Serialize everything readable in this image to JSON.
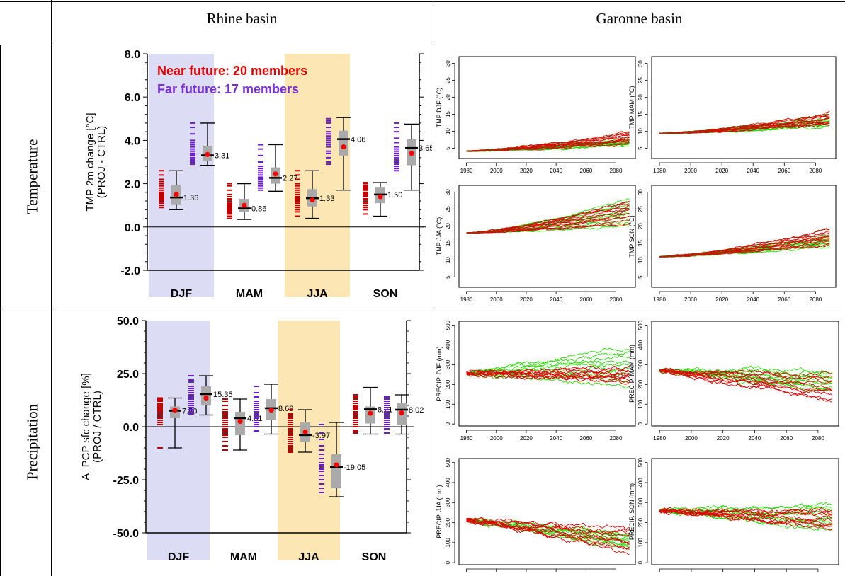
{
  "headers": {
    "rhine": "Rhine basin",
    "garonne": "Garonne basin"
  },
  "rows": {
    "temperature": "Temperature",
    "precipitation": "Precipitation"
  },
  "chart_data": [
    {
      "id": "rhine_temp",
      "type": "boxplot",
      "ylabel_1": "TMP 2m change [°C]",
      "ylabel_2": "(PROJ - CTRL)",
      "ylim": [
        -2.0,
        8.0
      ],
      "yticks": [
        "8.0",
        "6.0",
        "4.0",
        "2.0",
        "0.0",
        "-2.0"
      ],
      "ytick_values": [
        8,
        6,
        4,
        2,
        0,
        -2
      ],
      "categories": [
        "DJF",
        "MAM",
        "JJA",
        "SON"
      ],
      "highlight_colors": {
        "DJF": "#dcdcf4",
        "JJA": "#fbe6b4"
      },
      "legend": [
        {
          "text": "Near future: 20 members",
          "color": "#e00000"
        },
        {
          "text": "Far future:   17 members",
          "color": "#7a2ed6"
        }
      ],
      "series": [
        {
          "name": "Near future",
          "color": "#c00000",
          "boxes": [
            {
              "season": "DJF",
              "min": 0.8,
              "q1": 1.05,
              "median": 1.36,
              "q3": 1.95,
              "max": 2.6,
              "mean": 1.5,
              "label": "1.36",
              "members": [
                0.9,
                1.0,
                1.1,
                1.2,
                1.3,
                1.35,
                1.4,
                1.45,
                1.5,
                1.55,
                1.6,
                1.7,
                1.8,
                1.9,
                2.0,
                2.1,
                2.2,
                2.4,
                2.6,
                1.25
              ]
            },
            {
              "season": "MAM",
              "min": 0.35,
              "q1": 0.7,
              "median": 0.86,
              "q3": 1.3,
              "max": 2.0,
              "mean": 1.0,
              "label": "0.86",
              "members": [
                0.4,
                0.5,
                0.6,
                0.7,
                0.75,
                0.8,
                0.85,
                0.9,
                0.95,
                1.0,
                1.05,
                1.1,
                1.2,
                1.3,
                1.4,
                1.5,
                1.7,
                1.9,
                2.0,
                0.65
              ]
            },
            {
              "season": "JJA",
              "min": 0.4,
              "q1": 0.95,
              "median": 1.33,
              "q3": 1.75,
              "max": 2.6,
              "mean": 1.25,
              "label": "1.33",
              "members": [
                0.5,
                0.7,
                0.9,
                1.0,
                1.1,
                1.2,
                1.25,
                1.3,
                1.35,
                1.4,
                1.5,
                1.6,
                1.7,
                1.8,
                1.9,
                2.0,
                2.2,
                2.4,
                2.6,
                0.8
              ]
            },
            {
              "season": "SON",
              "min": 0.5,
              "q1": 1.1,
              "median": 1.5,
              "q3": 1.85,
              "max": 2.05,
              "mean": 1.4,
              "label": "1.50",
              "members": [
                0.6,
                0.8,
                0.9,
                1.0,
                1.1,
                1.2,
                1.3,
                1.4,
                1.45,
                1.5,
                1.55,
                1.6,
                1.7,
                1.75,
                1.8,
                1.85,
                1.9,
                2.0,
                2.05,
                1.0
              ]
            }
          ]
        },
        {
          "name": "Far future",
          "color": "#6a1fc8",
          "boxes": [
            {
              "season": "DJF",
              "min": 2.85,
              "q1": 3.05,
              "median": 3.31,
              "q3": 3.75,
              "max": 4.8,
              "mean": 3.35,
              "label": "3.31",
              "members": [
                2.9,
                3.0,
                3.05,
                3.1,
                3.2,
                3.3,
                3.35,
                3.4,
                3.5,
                3.6,
                3.7,
                3.8,
                3.9,
                4.0,
                4.3,
                4.6,
                4.8
              ]
            },
            {
              "season": "MAM",
              "min": 1.65,
              "q1": 2.0,
              "median": 2.27,
              "q3": 2.75,
              "max": 3.8,
              "mean": 2.45,
              "label": "2.27",
              "members": [
                1.7,
                1.8,
                1.9,
                2.0,
                2.1,
                2.2,
                2.25,
                2.3,
                2.4,
                2.5,
                2.6,
                2.7,
                2.8,
                3.0,
                3.3,
                3.6,
                3.8
              ]
            },
            {
              "season": "JJA",
              "min": 1.7,
              "q1": 3.3,
              "median": 4.06,
              "q3": 4.45,
              "max": 5.05,
              "mean": 3.7,
              "label": "4.06",
              "members": [
                2.9,
                3.0,
                3.2,
                3.4,
                3.5,
                3.7,
                3.8,
                3.9,
                4.0,
                4.1,
                4.2,
                4.3,
                4.4,
                4.6,
                4.8,
                4.9,
                5.0
              ]
            },
            {
              "season": "SON",
              "min": 1.7,
              "q1": 2.85,
              "median": 3.65,
              "q3": 4.05,
              "max": 4.75,
              "mean": 3.4,
              "label": "3.65",
              "members": [
                2.6,
                2.7,
                2.8,
                2.9,
                3.0,
                3.1,
                3.2,
                3.3,
                3.4,
                3.5,
                3.6,
                3.7,
                3.9,
                4.1,
                4.4,
                4.6,
                4.8
              ]
            }
          ]
        }
      ]
    },
    {
      "id": "rhine_precip",
      "type": "boxplot",
      "ylabel_1": "A_PCP sfc change [%]",
      "ylabel_2": "(PROJ / CTRL)",
      "ylim": [
        -50.0,
        50.0
      ],
      "yticks": [
        "50.0",
        "25.0",
        "0.0",
        "-25.0",
        "-50.0"
      ],
      "ytick_values": [
        50,
        25,
        0,
        -25,
        -50
      ],
      "categories": [
        "DJF",
        "MAM",
        "JJA",
        "SON"
      ],
      "highlight_colors": {
        "DJF": "#dcdcf4",
        "JJA": "#fbe6b4"
      },
      "series": [
        {
          "name": "Near future",
          "color": "#c00000",
          "boxes": [
            {
              "season": "DJF",
              "min": -10.0,
              "q1": 4.0,
              "median": 7.5,
              "q3": 9.5,
              "max": 13.5,
              "mean": 7.8,
              "label": "7.50",
              "members": [
                -10,
                1,
                2,
                3,
                4,
                5,
                6,
                7,
                7.5,
                8,
                8.5,
                9,
                9.5,
                10,
                10.5,
                11,
                12,
                12.5,
                13,
                13.5
              ]
            },
            {
              "season": "MAM",
              "min": -11.0,
              "q1": -4.0,
              "median": 4.01,
              "q3": 7.0,
              "max": 13.0,
              "mean": 2.5,
              "label": "4.01",
              "members": [
                -11,
                -9,
                -7,
                -5,
                -4,
                -3,
                -2,
                -1,
                0,
                1,
                2,
                3,
                4,
                5,
                6,
                7,
                8,
                10,
                12,
                13
              ]
            },
            {
              "season": "JJA",
              "min": -12.0,
              "q1": -7.0,
              "median": -3.97,
              "q3": 2.0,
              "max": 8.0,
              "mean": -2.5,
              "label": "-3.97",
              "members": [
                -12,
                -11,
                -10,
                -9,
                -8,
                -7,
                -6,
                -5,
                -4,
                -3,
                -2,
                -1,
                0,
                1,
                2,
                3,
                4,
                5,
                6,
                8
              ]
            },
            {
              "season": "SON",
              "min": -3.5,
              "q1": 1.5,
              "median": 8.21,
              "q3": 9.5,
              "max": 18.5,
              "mean": 6.3,
              "label": "8.21",
              "members": [
                -3,
                -2,
                0,
                1,
                2,
                3,
                4,
                5,
                6,
                7,
                8,
                8.5,
                9,
                9.5,
                10,
                11,
                12,
                13,
                14,
                15
              ]
            }
          ]
        },
        {
          "name": "Far future",
          "color": "#6a1fc8",
          "boxes": [
            {
              "season": "DJF",
              "min": 5.5,
              "q1": 10.0,
              "median": 15.35,
              "q3": 19.0,
              "max": 24.0,
              "mean": 13.5,
              "label": "15.35",
              "members": [
                6,
                7,
                8,
                9,
                10,
                11,
                12,
                13,
                14,
                15,
                16,
                17,
                18,
                19,
                21,
                22,
                24
              ]
            },
            {
              "season": "MAM",
              "min": -3.5,
              "q1": 3.0,
              "median": 8.69,
              "q3": 13.0,
              "max": 20.0,
              "mean": 7.8,
              "label": "8.69",
              "members": [
                -2,
                0,
                1,
                2,
                3,
                4,
                5,
                6,
                7,
                8,
                9,
                10,
                11,
                12,
                14,
                16,
                19
              ]
            },
            {
              "season": "JJA",
              "min": -33.0,
              "q1": -29.0,
              "median": -19.05,
              "q3": -13.0,
              "max": 2.0,
              "mean": -18.0,
              "label": "-19.05",
              "members": [
                -31,
                -29,
                -27,
                -25,
                -23,
                -21,
                -20,
                -19,
                -18,
                -17,
                -15,
                -13,
                -11,
                -9,
                -6,
                -3,
                1
              ]
            },
            {
              "season": "SON",
              "min": -3.5,
              "q1": 1.0,
              "median": 8.02,
              "q3": 11.0,
              "max": 15.0,
              "mean": 6.5,
              "label": "8.02",
              "members": [
                -3,
                -1,
                0,
                1,
                2,
                3,
                4,
                5,
                6,
                7,
                8,
                9,
                10,
                11,
                12,
                13,
                14
              ]
            }
          ]
        }
      ]
    },
    {
      "id": "garonne_temp",
      "type": "line",
      "x_ticks": [
        1980,
        2000,
        2020,
        2040,
        2060,
        2080
      ],
      "xlim": [
        1975,
        2093
      ],
      "ylim": [
        2,
        32
      ],
      "yticks": [
        5,
        10,
        15,
        20,
        25,
        30
      ],
      "colors": {
        "green": "#22dd00",
        "red": "#e00000",
        "brown": "#a03000"
      },
      "panels": [
        {
          "ylabel": "TMP DJF (°C)",
          "start": 4.2,
          "end_green": [
            6.0,
            7.8
          ],
          "end_red": [
            6.5,
            7.5,
            9.8
          ]
        },
        {
          "ylabel": "TMP MAM (°C)",
          "start": 9.4,
          "end_green": [
            11.5,
            14.5
          ],
          "end_red": [
            12.0,
            15.2
          ]
        },
        {
          "ylabel": "TMP JJA (°C)",
          "start": 18.0,
          "end_green": [
            20.0,
            28.0
          ],
          "end_red": [
            21.0,
            27.5
          ]
        },
        {
          "ylabel": "TMP SON (°C)",
          "start": 11.0,
          "end_green": [
            14.0,
            17.5
          ],
          "end_red": [
            14.5,
            19.0
          ]
        }
      ]
    },
    {
      "id": "garonne_precip",
      "type": "line",
      "x_ticks": [
        1980,
        2000,
        2020,
        2040,
        2060,
        2080
      ],
      "xlim": [
        1975,
        2093
      ],
      "ylim": [
        -10,
        520
      ],
      "yticks": [
        0,
        100,
        200,
        300,
        400,
        500
      ],
      "colors": {
        "green": "#22dd00",
        "red": "#e00000"
      },
      "panels": [
        {
          "ylabel": "PRECIP. DJF  (mm)",
          "start": 255,
          "end_green": [
            190,
            390
          ],
          "end_red": [
            200,
            285
          ]
        },
        {
          "ylabel": "PRECIP. MAM  (mm)",
          "start": 270,
          "end_green": [
            160,
            270
          ],
          "end_red": [
            115,
            250
          ]
        },
        {
          "ylabel": "PRECIP. JJA  (mm)",
          "start": 215,
          "end_green": [
            70,
            150
          ],
          "end_red": [
            50,
            175
          ]
        },
        {
          "ylabel": "PRECIP. SON  (mm)",
          "start": 260,
          "end_green": [
            160,
            290
          ],
          "end_red": [
            170,
            260
          ]
        }
      ]
    }
  ]
}
